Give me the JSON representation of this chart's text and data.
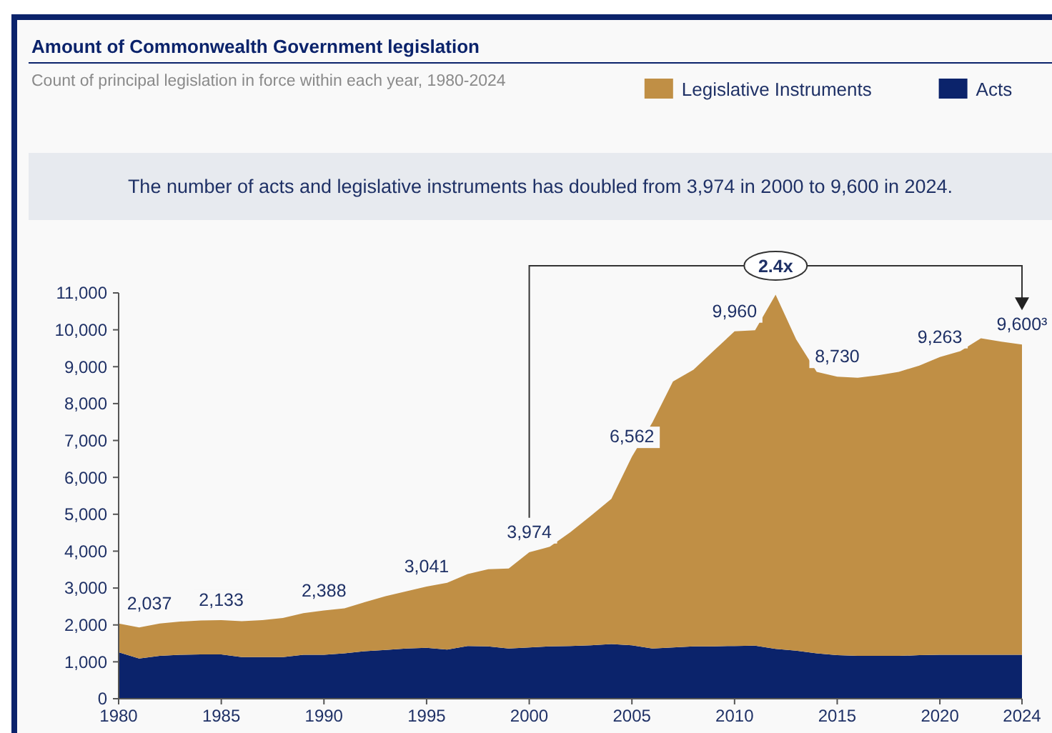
{
  "chart_data": {
    "type": "area",
    "stacked": true,
    "title": "Amount of Commonwealth Government legislation",
    "subtitle": "Count of principal legislation in force within each year, 1980-2024",
    "x": [
      1980,
      1981,
      1982,
      1983,
      1984,
      1985,
      1986,
      1987,
      1988,
      1989,
      1990,
      1991,
      1992,
      1993,
      1994,
      1995,
      1996,
      1997,
      1998,
      1999,
      2000,
      2001,
      2002,
      2003,
      2004,
      2005,
      2006,
      2007,
      2008,
      2009,
      2010,
      2011,
      2012,
      2013,
      2014,
      2015,
      2016,
      2017,
      2018,
      2019,
      2020,
      2021,
      2022,
      2023,
      2024
    ],
    "series": [
      {
        "name": "Acts",
        "color": "#0b236b",
        "values": [
          1260,
          1090,
          1160,
          1190,
          1200,
          1200,
          1130,
          1130,
          1130,
          1190,
          1190,
          1230,
          1290,
          1320,
          1360,
          1380,
          1330,
          1430,
          1420,
          1360,
          1390,
          1420,
          1430,
          1450,
          1480,
          1450,
          1360,
          1390,
          1420,
          1420,
          1430,
          1440,
          1350,
          1300,
          1230,
          1180,
          1160,
          1160,
          1160,
          1180,
          1190,
          1190,
          1190,
          1190,
          1190
        ]
      },
      {
        "name": "Legislative Instruments",
        "color": "#c08f45",
        "values": [
          780,
          840,
          880,
          900,
          920,
          930,
          970,
          1000,
          1060,
          1130,
          1200,
          1220,
          1330,
          1460,
          1550,
          1660,
          1810,
          1950,
          2090,
          2170,
          2580,
          2700,
          3080,
          3510,
          3940,
          5110,
          6130,
          7210,
          7500,
          8020,
          8530,
          8550,
          9600,
          8440,
          7630,
          7550,
          7540,
          7610,
          7700,
          7850,
          8070,
          8230,
          8580,
          8490,
          8410
        ]
      }
    ],
    "xlim": [
      1980,
      2024
    ],
    "xticks": [
      1980,
      1985,
      1990,
      1995,
      2000,
      2005,
      2010,
      2015,
      2020,
      2024
    ],
    "ylim": [
      0,
      11000
    ],
    "yticks": [
      {
        "value": 0,
        "label": "0"
      },
      {
        "value": 1000,
        "label": "1,000"
      },
      {
        "value": 2000,
        "label": "2,000"
      },
      {
        "value": 3000,
        "label": "3,000"
      },
      {
        "value": 4000,
        "label": "4,000"
      },
      {
        "value": 5000,
        "label": "5,000"
      },
      {
        "value": 6000,
        "label": "6,000"
      },
      {
        "value": 7000,
        "label": "7,000"
      },
      {
        "value": 8000,
        "label": "8,000"
      },
      {
        "value": 9000,
        "label": "9,000"
      },
      {
        "value": 10000,
        "label": "10,000"
      },
      {
        "value": 11000,
        "label": "11,000"
      }
    ],
    "grid": false,
    "legend": "top right",
    "annotations": [
      "The number of acts and legislative instruments has doubled from 3,974 in 2000 to 9,600 in 2024.",
      "2.4x",
      {
        "text": "2,037",
        "x": 1980,
        "y": 2037
      },
      {
        "text": "2,133",
        "x": 1985,
        "y": 2133
      },
      {
        "text": "2,388",
        "x": 1990,
        "y": 2388
      },
      {
        "text": "3,041",
        "x": 1995,
        "y": 3041
      },
      {
        "text": "3,974",
        "x": 2000,
        "y": 3974
      },
      {
        "text": "6,562",
        "x": 2005,
        "y": 6562
      },
      {
        "text": "9,960",
        "x": 2010,
        "y": 9960
      },
      {
        "text": "8,730",
        "x": 2015,
        "y": 8730
      },
      {
        "text": "9,263",
        "x": 2020,
        "y": 9263
      },
      {
        "text": "9,600³",
        "x": 2024,
        "y": 9600
      }
    ]
  }
}
